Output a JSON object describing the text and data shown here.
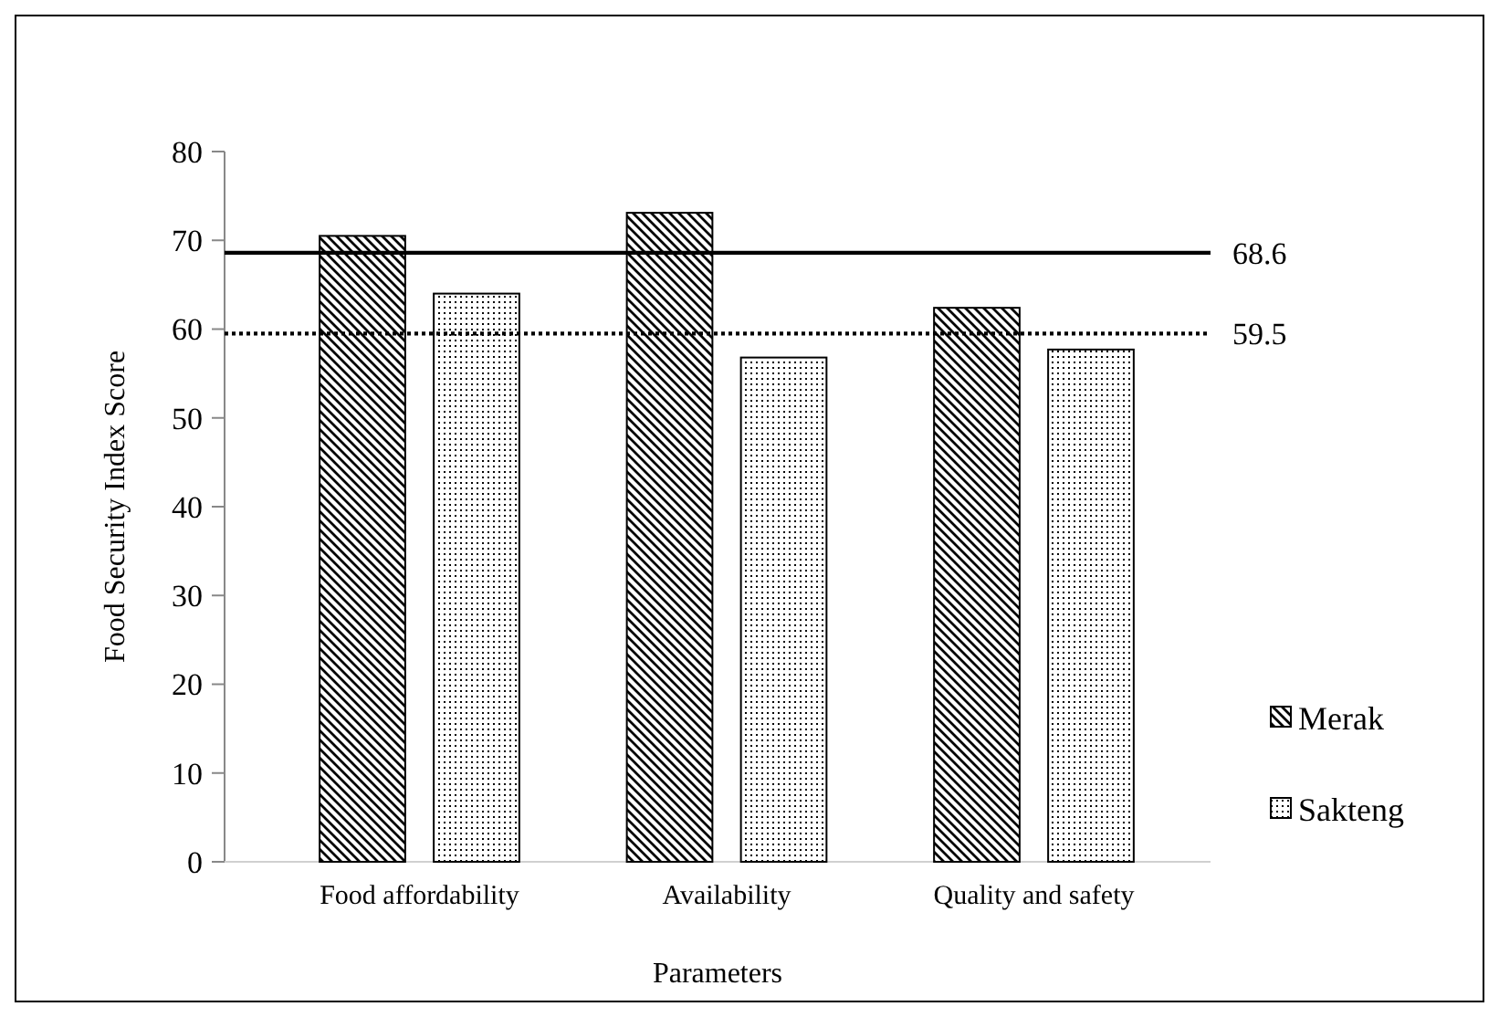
{
  "chart_data": {
    "type": "bar",
    "xlabel": "Parameters",
    "ylabel": "Food Security Index Score",
    "categories": [
      "Food affordability",
      "Availability",
      "Quality and safety"
    ],
    "series": [
      {
        "name": "Merak",
        "color": "#000000",
        "values": [
          70.5,
          73.1,
          62.4
        ]
      },
      {
        "name": "Sakteng",
        "color": "#000000",
        "values": [
          64.0,
          56.8,
          57.7
        ]
      }
    ],
    "ylim": [
      0,
      80
    ],
    "yticks": [
      0,
      10,
      20,
      30,
      40,
      50,
      60,
      70,
      80
    ],
    "grid": false,
    "legend": "right",
    "ref_lines": [
      {
        "axis": "y",
        "value": 68.6,
        "label": "68.6",
        "line_style": "solid",
        "color": "#000000"
      },
      {
        "axis": "y",
        "value": 59.5,
        "label": "59.5",
        "line_style": "dotted",
        "color": "#000000"
      }
    ]
  }
}
